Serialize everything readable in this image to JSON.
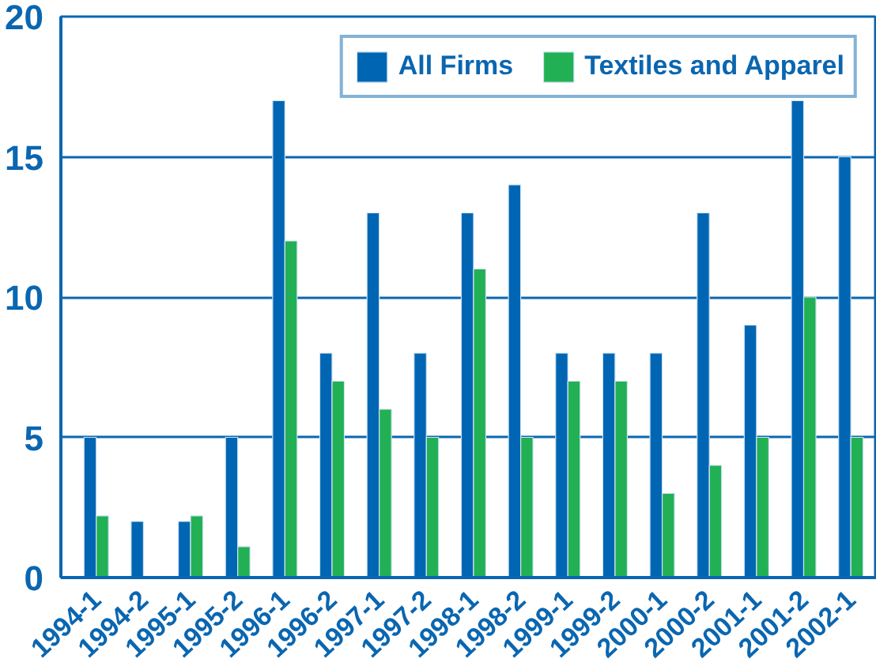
{
  "chart_data": {
    "type": "bar",
    "categories": [
      "1994-1",
      "1994-2",
      "1995-1",
      "1995-2",
      "1996-1",
      "1996-2",
      "1997-1",
      "1997-2",
      "1998-1",
      "1998-2",
      "1999-1",
      "1999-2",
      "2000-1",
      "2000-2",
      "2001-1",
      "2001-2",
      "2002-1"
    ],
    "series": [
      {
        "name": "All Firms",
        "color": "#0066b3",
        "values": [
          5,
          2,
          2,
          5,
          17,
          8,
          13,
          8,
          13,
          14,
          8,
          8,
          8,
          13,
          9,
          17,
          15
        ]
      },
      {
        "name": "Textiles and Apparel",
        "color": "#22b055",
        "values": [
          2.2,
          null,
          2.2,
          1.1,
          12,
          7,
          6,
          5,
          11,
          5,
          7,
          7,
          3,
          4,
          5,
          10,
          5
        ]
      }
    ],
    "ylim": [
      0,
      20
    ],
    "yticks": [
      0,
      5,
      10,
      15,
      20
    ],
    "grid": "y",
    "legend": "top right"
  }
}
